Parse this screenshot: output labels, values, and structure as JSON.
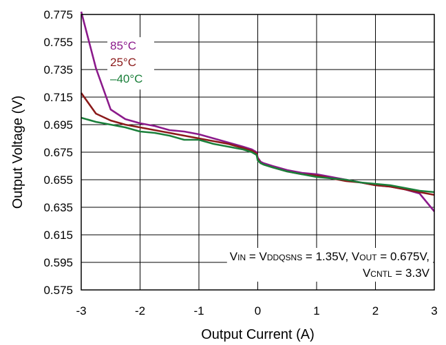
{
  "chart_data": {
    "type": "line",
    "title": "",
    "xlabel": "Output Current (A)",
    "ylabel": "Output Voltage (V)",
    "xlim": [
      -3,
      3
    ],
    "ylim": [
      0.575,
      0.775
    ],
    "grid": true,
    "legend_placement": "top-left",
    "x_ticks": [
      -3,
      -2,
      -1,
      0,
      1,
      2,
      3
    ],
    "y_ticks": [
      0.575,
      0.595,
      0.615,
      0.635,
      0.655,
      0.675,
      0.695,
      0.715,
      0.735,
      0.755,
      0.775
    ],
    "series": [
      {
        "name": "85°C",
        "color": "#8B1A8B",
        "points": [
          [
            -3,
            0.777
          ],
          [
            -2.75,
            0.736
          ],
          [
            -2.5,
            0.706
          ],
          [
            -2.25,
            0.699
          ],
          [
            -2.0,
            0.696
          ],
          [
            -1.75,
            0.694
          ],
          [
            -1.5,
            0.691
          ],
          [
            -1.25,
            0.69
          ],
          [
            -1.0,
            0.688
          ],
          [
            -0.75,
            0.685
          ],
          [
            -0.5,
            0.682
          ],
          [
            -0.25,
            0.679
          ],
          [
            -0.1,
            0.677
          ],
          [
            -0.02,
            0.675
          ],
          [
            0.0,
            0.671
          ],
          [
            0.05,
            0.668
          ],
          [
            0.1,
            0.667
          ],
          [
            0.25,
            0.665
          ],
          [
            0.5,
            0.662
          ],
          [
            0.75,
            0.66
          ],
          [
            1.0,
            0.659
          ],
          [
            1.25,
            0.657
          ],
          [
            1.5,
            0.655
          ],
          [
            1.75,
            0.653
          ],
          [
            2.0,
            0.651
          ],
          [
            2.25,
            0.65
          ],
          [
            2.5,
            0.648
          ],
          [
            2.75,
            0.645
          ],
          [
            3.0,
            0.632
          ]
        ]
      },
      {
        "name": "25°C",
        "color": "#8B1A1A",
        "points": [
          [
            -3,
            0.718
          ],
          [
            -2.75,
            0.703
          ],
          [
            -2.5,
            0.698
          ],
          [
            -2.25,
            0.695
          ],
          [
            -2.0,
            0.693
          ],
          [
            -1.75,
            0.691
          ],
          [
            -1.5,
            0.689
          ],
          [
            -1.25,
            0.687
          ],
          [
            -1.0,
            0.685
          ],
          [
            -0.75,
            0.683
          ],
          [
            -0.5,
            0.681
          ],
          [
            -0.25,
            0.678
          ],
          [
            -0.1,
            0.676
          ],
          [
            -0.02,
            0.674
          ],
          [
            0.0,
            0.67
          ],
          [
            0.05,
            0.667
          ],
          [
            0.1,
            0.666
          ],
          [
            0.25,
            0.664
          ],
          [
            0.5,
            0.661
          ],
          [
            0.75,
            0.659
          ],
          [
            1.0,
            0.658
          ],
          [
            1.25,
            0.656
          ],
          [
            1.5,
            0.654
          ],
          [
            1.75,
            0.653
          ],
          [
            2.0,
            0.651
          ],
          [
            2.25,
            0.65
          ],
          [
            2.5,
            0.648
          ],
          [
            2.75,
            0.646
          ],
          [
            3.0,
            0.644
          ]
        ]
      },
      {
        "name": "–40°C",
        "color": "#1A7F3A",
        "points": [
          [
            -3,
            0.7
          ],
          [
            -2.75,
            0.697
          ],
          [
            -2.5,
            0.695
          ],
          [
            -2.25,
            0.693
          ],
          [
            -2.0,
            0.69
          ],
          [
            -1.75,
            0.689
          ],
          [
            -1.5,
            0.687
          ],
          [
            -1.25,
            0.684
          ],
          [
            -1.0,
            0.684
          ],
          [
            -0.75,
            0.681
          ],
          [
            -0.5,
            0.679
          ],
          [
            -0.25,
            0.677
          ],
          [
            -0.1,
            0.675
          ],
          [
            -0.02,
            0.673
          ],
          [
            0.0,
            0.669
          ],
          [
            0.05,
            0.667
          ],
          [
            0.1,
            0.666
          ],
          [
            0.25,
            0.664
          ],
          [
            0.5,
            0.661
          ],
          [
            0.75,
            0.659
          ],
          [
            1.0,
            0.657
          ],
          [
            1.25,
            0.656
          ],
          [
            1.5,
            0.655
          ],
          [
            1.75,
            0.653
          ],
          [
            2.0,
            0.652
          ],
          [
            2.25,
            0.651
          ],
          [
            2.5,
            0.649
          ],
          [
            2.75,
            0.647
          ],
          [
            3.0,
            0.646
          ]
        ]
      }
    ],
    "annotation": {
      "line1": {
        "parts": [
          {
            "text": "V",
            "sub": "IN"
          },
          {
            "text": " = V",
            "sub": "DDQSNS"
          },
          {
            "text": " = 1.35V, V",
            "sub": "OUT"
          },
          {
            "text": " = 0.675V,",
            "sub": ""
          }
        ]
      },
      "line2": {
        "parts": [
          {
            "text": "V",
            "sub": "CNTL"
          },
          {
            "text": " = 3.3V",
            "sub": ""
          }
        ]
      }
    }
  }
}
